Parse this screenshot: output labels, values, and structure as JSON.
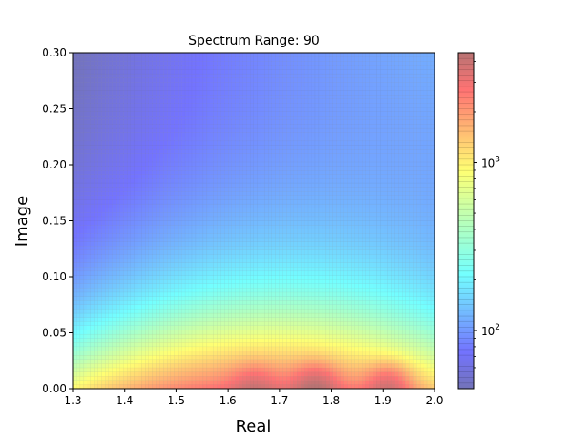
{
  "chart_data": {
    "type": "heatmap",
    "title": "Spectrum Range: 90",
    "xlabel": "Real",
    "ylabel": "Image",
    "xlim": [
      1.3,
      2.0
    ],
    "ylim": [
      0.0,
      0.3
    ],
    "x_ticks": [
      "1.3",
      "1.4",
      "1.5",
      "1.6",
      "1.7",
      "1.8",
      "1.9",
      "2.0"
    ],
    "y_ticks": [
      "0.00",
      "0.05",
      "0.10",
      "0.15",
      "0.20",
      "0.25",
      "0.30"
    ],
    "colorbar": {
      "scale": "log",
      "range": [
        45,
        4500
      ],
      "colormap": "jet",
      "major_ticks": [
        {
          "value": 100,
          "base": "10",
          "exp": "2"
        },
        {
          "value": 1000,
          "base": "10",
          "exp": "3"
        }
      ]
    },
    "peaks": [
      {
        "x": 1.77,
        "y": 0.0,
        "value": 4200
      },
      {
        "x": 1.91,
        "y": 0.0,
        "value": 3800
      },
      {
        "x": 1.65,
        "y": 0.0,
        "value": 2500
      }
    ]
  }
}
